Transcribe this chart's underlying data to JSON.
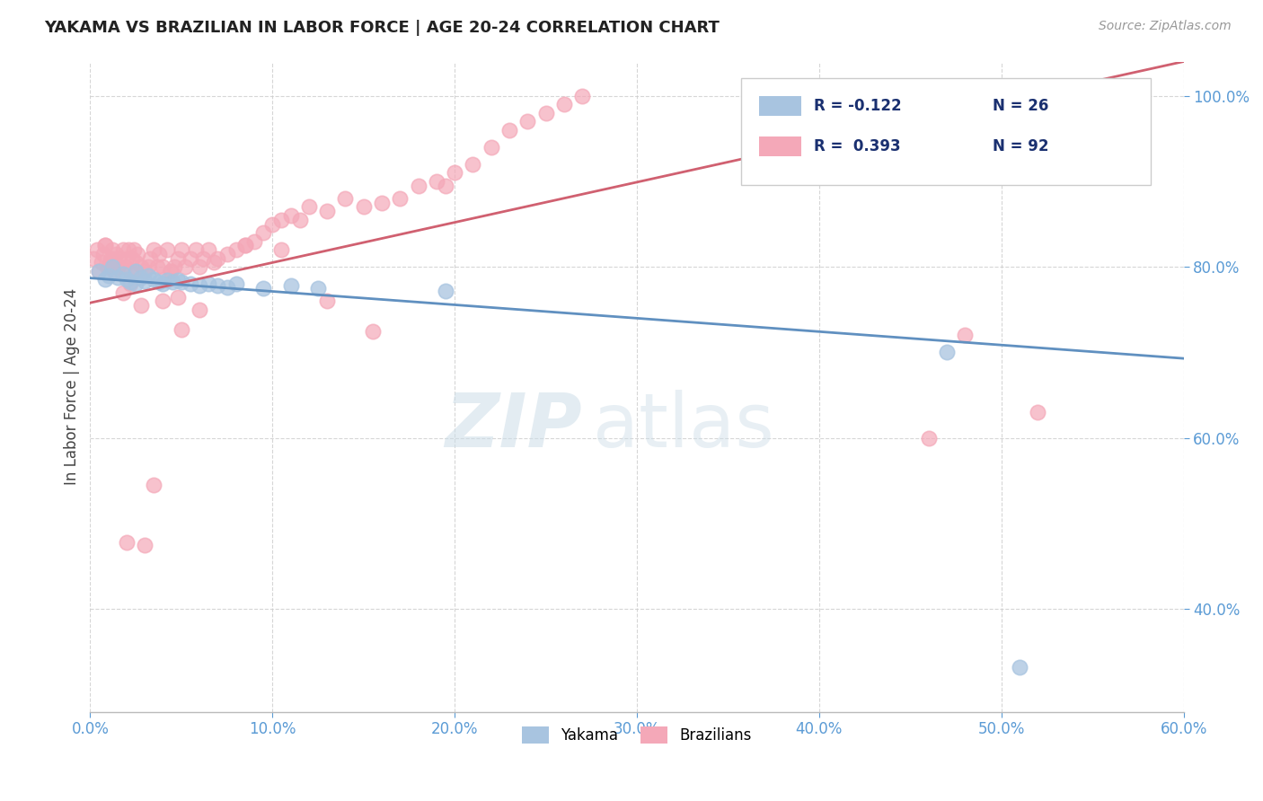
{
  "title": "YAKAMA VS BRAZILIAN IN LABOR FORCE | AGE 20-24 CORRELATION CHART",
  "source_text": "Source: ZipAtlas.com",
  "xlim": [
    0.0,
    0.6
  ],
  "ylim": [
    0.28,
    1.04
  ],
  "yakama_color": "#a8c4e0",
  "brazilian_color": "#f4a8b8",
  "yakama_line_color": "#6090c0",
  "brazilian_line_color": "#d06070",
  "title_color": "#222222",
  "axis_label_color": "#5b9bd5",
  "grid_color": "#cccccc",
  "background_color": "#ffffff",
  "yakama_scatter": {
    "x": [
      0.005,
      0.008,
      0.01,
      0.012,
      0.015,
      0.018,
      0.02,
      0.022,
      0.025,
      0.025,
      0.028,
      0.03,
      0.032,
      0.035,
      0.038,
      0.04,
      0.042,
      0.045,
      0.048,
      0.05,
      0.055,
      0.06,
      0.065,
      0.07,
      0.075,
      0.08,
      0.095,
      0.11,
      0.125,
      0.195,
      0.47,
      0.51
    ],
    "y": [
      0.795,
      0.785,
      0.79,
      0.8,
      0.788,
      0.792,
      0.785,
      0.782,
      0.795,
      0.78,
      0.788,
      0.783,
      0.79,
      0.785,
      0.782,
      0.78,
      0.784,
      0.782,
      0.784,
      0.782,
      0.78,
      0.778,
      0.78,
      0.778,
      0.776,
      0.78,
      0.775,
      0.778,
      0.775,
      0.772,
      0.7,
      0.332
    ]
  },
  "brazilian_scatter": {
    "x": [
      0.002,
      0.004,
      0.005,
      0.006,
      0.007,
      0.008,
      0.009,
      0.01,
      0.011,
      0.012,
      0.013,
      0.014,
      0.015,
      0.016,
      0.018,
      0.019,
      0.02,
      0.021,
      0.022,
      0.023,
      0.024,
      0.025,
      0.026,
      0.028,
      0.03,
      0.032,
      0.033,
      0.035,
      0.037,
      0.038,
      0.04,
      0.042,
      0.044,
      0.046,
      0.048,
      0.05,
      0.052,
      0.055,
      0.058,
      0.06,
      0.062,
      0.065,
      0.068,
      0.07,
      0.075,
      0.08,
      0.085,
      0.09,
      0.095,
      0.1,
      0.105,
      0.11,
      0.115,
      0.12,
      0.13,
      0.14,
      0.15,
      0.16,
      0.17,
      0.18,
      0.19,
      0.195,
      0.2,
      0.21,
      0.22,
      0.23,
      0.24,
      0.25,
      0.26,
      0.27,
      0.04,
      0.048,
      0.06,
      0.48,
      0.52,
      0.02,
      0.03,
      0.46,
      0.035,
      0.05,
      0.13,
      0.155,
      0.105,
      0.085,
      0.018,
      0.022,
      0.028,
      0.044,
      0.008,
      0.012,
      0.015,
      0.025
    ],
    "y": [
      0.81,
      0.82,
      0.795,
      0.805,
      0.815,
      0.825,
      0.8,
      0.8,
      0.81,
      0.82,
      0.795,
      0.815,
      0.8,
      0.81,
      0.82,
      0.8,
      0.81,
      0.82,
      0.795,
      0.81,
      0.82,
      0.805,
      0.815,
      0.8,
      0.795,
      0.8,
      0.81,
      0.82,
      0.8,
      0.815,
      0.8,
      0.82,
      0.795,
      0.8,
      0.81,
      0.82,
      0.8,
      0.81,
      0.82,
      0.8,
      0.81,
      0.82,
      0.805,
      0.81,
      0.815,
      0.82,
      0.825,
      0.83,
      0.84,
      0.85,
      0.855,
      0.86,
      0.855,
      0.87,
      0.865,
      0.88,
      0.87,
      0.875,
      0.88,
      0.895,
      0.9,
      0.895,
      0.91,
      0.92,
      0.94,
      0.96,
      0.97,
      0.98,
      0.99,
      1.0,
      0.76,
      0.765,
      0.75,
      0.72,
      0.63,
      0.478,
      0.475,
      0.6,
      0.545,
      0.727,
      0.76,
      0.725,
      0.82,
      0.825,
      0.77,
      0.78,
      0.755,
      0.795,
      0.825,
      0.81,
      0.8,
      0.795
    ]
  },
  "yakama_trendline": {
    "x": [
      0.0,
      0.6
    ],
    "y": [
      0.787,
      0.693
    ]
  },
  "brazilian_trendline": {
    "x": [
      0.0,
      0.2
    ],
    "y": [
      0.758,
      1.04
    ]
  },
  "brazilian_trendline_full": {
    "x": [
      0.0,
      0.6
    ],
    "y": [
      0.758,
      1.04
    ]
  }
}
